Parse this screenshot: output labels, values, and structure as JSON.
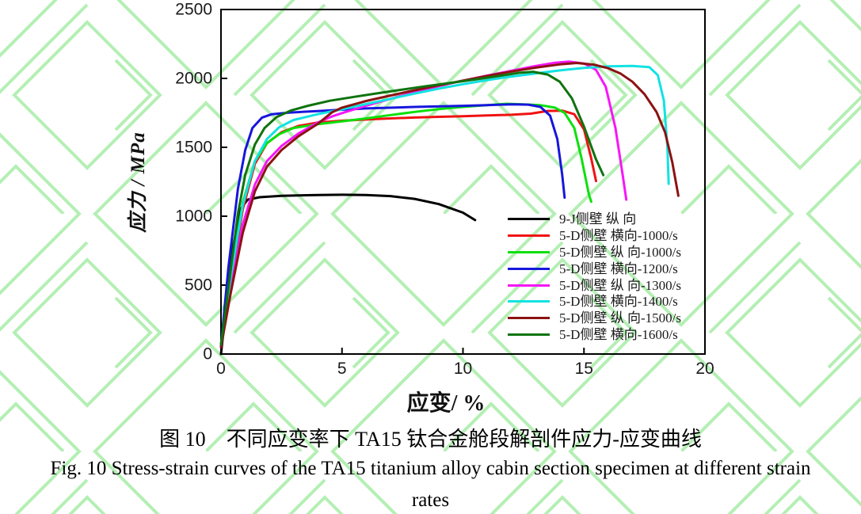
{
  "figure": {
    "caption_zh": "图 10　不同应变率下 TA15 钛合金舱段解剖件应力-应变曲线",
    "caption_en_line1": "Fig. 10 Stress-strain curves of the TA15 titanium alloy cabin section specimen at different strain",
    "caption_en_line2": "rates"
  },
  "chart_data": {
    "type": "line",
    "title": "",
    "xlabel": "应变/ %",
    "ylabel": "应力 / MPa",
    "xlim": [
      0,
      20
    ],
    "ylim": [
      0,
      2500
    ],
    "x_ticks": [
      "0",
      "5",
      "10",
      "15",
      "20"
    ],
    "x_tick_values": [
      0,
      5,
      10,
      15,
      20
    ],
    "y_ticks": [
      "0",
      "500",
      "1000",
      "1500",
      "2000",
      "2500"
    ],
    "y_tick_values": [
      0,
      500,
      1000,
      1500,
      2000,
      2500
    ],
    "grid": false,
    "legend_position": "inside-lower-right",
    "watermark_color": "#a7eda7",
    "axis_color": "#000000",
    "series": [
      {
        "name": "9-J侧壁 纵 向",
        "color": "#000000",
        "points": [
          [
            0,
            0
          ],
          [
            0.2,
            320
          ],
          [
            0.5,
            780
          ],
          [
            0.8,
            1050
          ],
          [
            1.1,
            1120
          ],
          [
            1.6,
            1138
          ],
          [
            2.5,
            1148
          ],
          [
            4,
            1154
          ],
          [
            5,
            1156
          ],
          [
            6,
            1154
          ],
          [
            7,
            1146
          ],
          [
            8,
            1126
          ],
          [
            9,
            1088
          ],
          [
            10,
            1026
          ],
          [
            10.5,
            972
          ]
        ]
      },
      {
        "name": "5-D侧壁 横向-1000/s",
        "color": "#f01212",
        "points": [
          [
            0,
            60
          ],
          [
            0.4,
            520
          ],
          [
            0.9,
            1050
          ],
          [
            1.4,
            1380
          ],
          [
            1.9,
            1530
          ],
          [
            2.5,
            1610
          ],
          [
            3.2,
            1655
          ],
          [
            4,
            1680
          ],
          [
            5,
            1693
          ],
          [
            6,
            1702
          ],
          [
            7,
            1710
          ],
          [
            8,
            1716
          ],
          [
            9,
            1721
          ],
          [
            10,
            1726
          ],
          [
            11,
            1731
          ],
          [
            12,
            1736
          ],
          [
            12.8,
            1744
          ],
          [
            13.5,
            1764
          ],
          [
            14.1,
            1766
          ],
          [
            14.6,
            1740
          ],
          [
            15,
            1630
          ],
          [
            15.3,
            1420
          ],
          [
            15.5,
            1255
          ]
        ]
      },
      {
        "name": "5-D侧壁 纵 向-1000/s",
        "color": "#0ce00c",
        "points": [
          [
            0,
            70
          ],
          [
            0.4,
            560
          ],
          [
            0.9,
            1100
          ],
          [
            1.4,
            1400
          ],
          [
            1.9,
            1530
          ],
          [
            2.4,
            1595
          ],
          [
            3,
            1640
          ],
          [
            4,
            1668
          ],
          [
            5,
            1688
          ],
          [
            6,
            1710
          ],
          [
            7,
            1734
          ],
          [
            8,
            1757
          ],
          [
            9,
            1777
          ],
          [
            10,
            1793
          ],
          [
            11,
            1806
          ],
          [
            11.8,
            1816
          ],
          [
            12.5,
            1812
          ],
          [
            13.2,
            1806
          ],
          [
            13.8,
            1788
          ],
          [
            14.2,
            1750
          ],
          [
            14.6,
            1640
          ],
          [
            14.9,
            1420
          ],
          [
            15.2,
            1160
          ],
          [
            15.3,
            1105
          ]
        ]
      },
      {
        "name": "5-D侧壁 横向-1200/s",
        "color": "#1616dd",
        "points": [
          [
            0,
            60
          ],
          [
            0.3,
            620
          ],
          [
            0.7,
            1200
          ],
          [
            1,
            1480
          ],
          [
            1.3,
            1640
          ],
          [
            1.7,
            1716
          ],
          [
            2.1,
            1740
          ],
          [
            2.8,
            1752
          ],
          [
            4,
            1763
          ],
          [
            5,
            1773
          ],
          [
            6,
            1782
          ],
          [
            8,
            1793
          ],
          [
            10,
            1801
          ],
          [
            11,
            1806
          ],
          [
            12,
            1812
          ],
          [
            12.7,
            1810
          ],
          [
            13.2,
            1793
          ],
          [
            13.6,
            1730
          ],
          [
            13.9,
            1560
          ],
          [
            14.1,
            1300
          ],
          [
            14.2,
            1135
          ]
        ]
      },
      {
        "name": "5-D侧壁 纵 向-1300/s",
        "color": "#f716f7",
        "points": [
          [
            0,
            50
          ],
          [
            0.4,
            480
          ],
          [
            0.9,
            940
          ],
          [
            1.4,
            1230
          ],
          [
            1.9,
            1400
          ],
          [
            2.5,
            1510
          ],
          [
            3.2,
            1600
          ],
          [
            4,
            1680
          ],
          [
            4.6,
            1725
          ],
          [
            5,
            1748
          ],
          [
            6,
            1802
          ],
          [
            7,
            1852
          ],
          [
            8,
            1900
          ],
          [
            9,
            1944
          ],
          [
            10,
            1984
          ],
          [
            11,
            2020
          ],
          [
            12,
            2055
          ],
          [
            13,
            2090
          ],
          [
            13.8,
            2114
          ],
          [
            14.4,
            2122
          ],
          [
            15,
            2108
          ],
          [
            15.5,
            2062
          ],
          [
            15.9,
            1940
          ],
          [
            16.3,
            1640
          ],
          [
            16.6,
            1300
          ],
          [
            16.75,
            1120
          ]
        ]
      },
      {
        "name": "5-D侧壁 横向-1400/s",
        "color": "#12e2e2",
        "points": [
          [
            0,
            60
          ],
          [
            0.4,
            560
          ],
          [
            0.9,
            1080
          ],
          [
            1.4,
            1400
          ],
          [
            1.9,
            1560
          ],
          [
            2.4,
            1645
          ],
          [
            3,
            1698
          ],
          [
            4,
            1740
          ],
          [
            5,
            1776
          ],
          [
            6,
            1814
          ],
          [
            7,
            1852
          ],
          [
            8,
            1890
          ],
          [
            9,
            1926
          ],
          [
            10,
            1958
          ],
          [
            11,
            1988
          ],
          [
            12,
            2014
          ],
          [
            13,
            2036
          ],
          [
            14,
            2058
          ],
          [
            15,
            2076
          ],
          [
            16,
            2088
          ],
          [
            17,
            2090
          ],
          [
            17.7,
            2082
          ],
          [
            18.05,
            2024
          ],
          [
            18.3,
            1840
          ],
          [
            18.45,
            1500
          ],
          [
            18.5,
            1235
          ]
        ]
      },
      {
        "name": "5-D侧壁 纵 向-1500/s",
        "color": "#8c1212",
        "points": [
          [
            0,
            50
          ],
          [
            0.4,
            440
          ],
          [
            0.9,
            880
          ],
          [
            1.4,
            1180
          ],
          [
            1.9,
            1360
          ],
          [
            2.5,
            1480
          ],
          [
            3.2,
            1580
          ],
          [
            4,
            1670
          ],
          [
            4.6,
            1755
          ],
          [
            5,
            1788
          ],
          [
            6,
            1836
          ],
          [
            7,
            1876
          ],
          [
            8,
            1914
          ],
          [
            9,
            1950
          ],
          [
            10,
            1984
          ],
          [
            11,
            2018
          ],
          [
            12,
            2050
          ],
          [
            13,
            2078
          ],
          [
            14,
            2102
          ],
          [
            14.7,
            2112
          ],
          [
            15.4,
            2100
          ],
          [
            16,
            2074
          ],
          [
            16.5,
            2036
          ],
          [
            17,
            1976
          ],
          [
            17.5,
            1886
          ],
          [
            18,
            1756
          ],
          [
            18.35,
            1610
          ],
          [
            18.65,
            1390
          ],
          [
            18.9,
            1148
          ]
        ]
      },
      {
        "name": "5-D侧壁 横向-1600/s",
        "color": "#0f730f",
        "points": [
          [
            0,
            70
          ],
          [
            0.35,
            540
          ],
          [
            0.7,
            1020
          ],
          [
            1,
            1300
          ],
          [
            1.4,
            1520
          ],
          [
            1.8,
            1640
          ],
          [
            2.3,
            1720
          ],
          [
            2.9,
            1768
          ],
          [
            3.6,
            1802
          ],
          [
            4.5,
            1838
          ],
          [
            5.5,
            1866
          ],
          [
            6.5,
            1893
          ],
          [
            7.5,
            1919
          ],
          [
            8.5,
            1944
          ],
          [
            9.5,
            1968
          ],
          [
            10.5,
            1992
          ],
          [
            11.5,
            2018
          ],
          [
            12.3,
            2040
          ],
          [
            12.9,
            2048
          ],
          [
            13.5,
            2028
          ],
          [
            14,
            1976
          ],
          [
            14.5,
            1856
          ],
          [
            15,
            1650
          ],
          [
            15.5,
            1412
          ],
          [
            15.8,
            1298
          ]
        ]
      }
    ]
  }
}
